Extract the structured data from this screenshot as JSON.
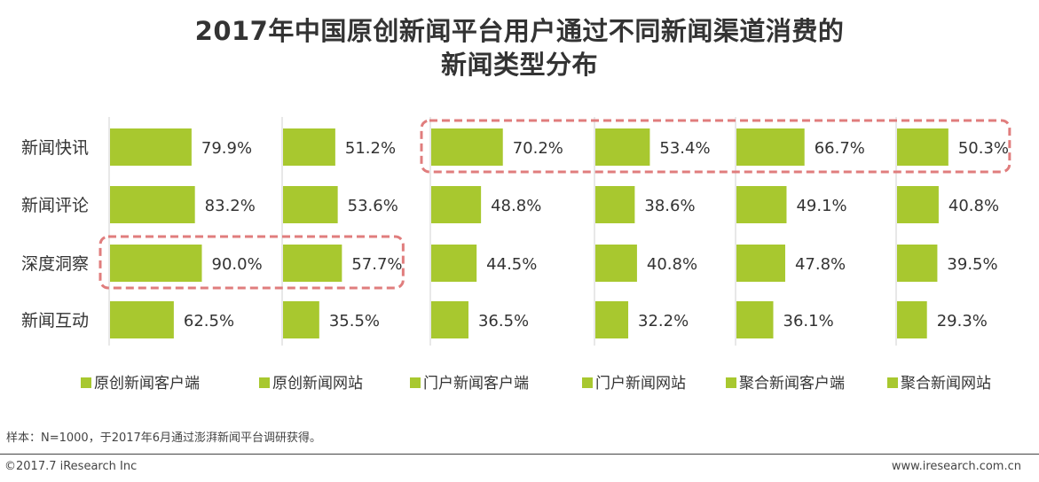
{
  "title": {
    "line1": "2017年中国原创新闻平台用户通过不同新闻渠道消费的",
    "line2": "新闻类型分布"
  },
  "note": "样本：N=1000，于2017年6月通过澎湃新闻平台调研获得。",
  "footer": {
    "left": "©2017.7 iResearch Inc",
    "right": "www.iresearch.com.cn"
  },
  "colors": {
    "bar": "#a8c82f",
    "highlight": "#e07d7d",
    "grid": "#d0d0d0",
    "text": "#333333"
  },
  "chart_data": {
    "type": "bar",
    "orientation": "horizontal",
    "layout": "small-multiples",
    "title": "2017年中国原创新闻平台用户通过不同新闻渠道消费的新闻类型分布",
    "categories": [
      "新闻快讯",
      "新闻评论",
      "深度洞察",
      "新闻互动"
    ],
    "unit": "%",
    "xlim": [
      0,
      100
    ],
    "legend_position": "bottom",
    "series": [
      {
        "name": "原创新闻客户端",
        "values": [
          79.9,
          83.2,
          90.0,
          62.5
        ],
        "labels": [
          "79.9%",
          "83.2%",
          "90.0%",
          "62.5%"
        ]
      },
      {
        "name": "原创新闻网站",
        "values": [
          51.2,
          53.6,
          57.7,
          35.5
        ],
        "labels": [
          "51.2%",
          "53.6%",
          "57.7%",
          "35.5%"
        ]
      },
      {
        "name": "门户新闻客户端",
        "values": [
          70.2,
          48.8,
          44.5,
          36.5
        ],
        "labels": [
          "70.2%",
          "48.8%",
          "44.5%",
          "36.5%"
        ]
      },
      {
        "name": "门户新闻网站",
        "values": [
          53.4,
          38.6,
          40.8,
          32.2
        ],
        "labels": [
          "53.4%",
          "38.6%",
          "40.8%",
          "32.2%"
        ]
      },
      {
        "name": "聚合新闻客户端",
        "values": [
          66.7,
          49.1,
          47.8,
          36.1
        ],
        "labels": [
          "66.7%",
          "49.1%",
          "47.8%",
          "36.1%"
        ]
      },
      {
        "name": "聚合新闻网站",
        "values": [
          50.3,
          40.8,
          39.5,
          29.3
        ],
        "labels": [
          "50.3%",
          "40.8%",
          "39.5%",
          "29.3%"
        ]
      }
    ],
    "highlights": [
      {
        "category": "新闻快讯",
        "series": [
          "门户新闻客户端",
          "门户新闻网站",
          "聚合新闻客户端",
          "聚合新闻网站"
        ]
      },
      {
        "category": "深度洞察",
        "series": [
          "原创新闻客户端",
          "原创新闻网站"
        ]
      }
    ]
  }
}
